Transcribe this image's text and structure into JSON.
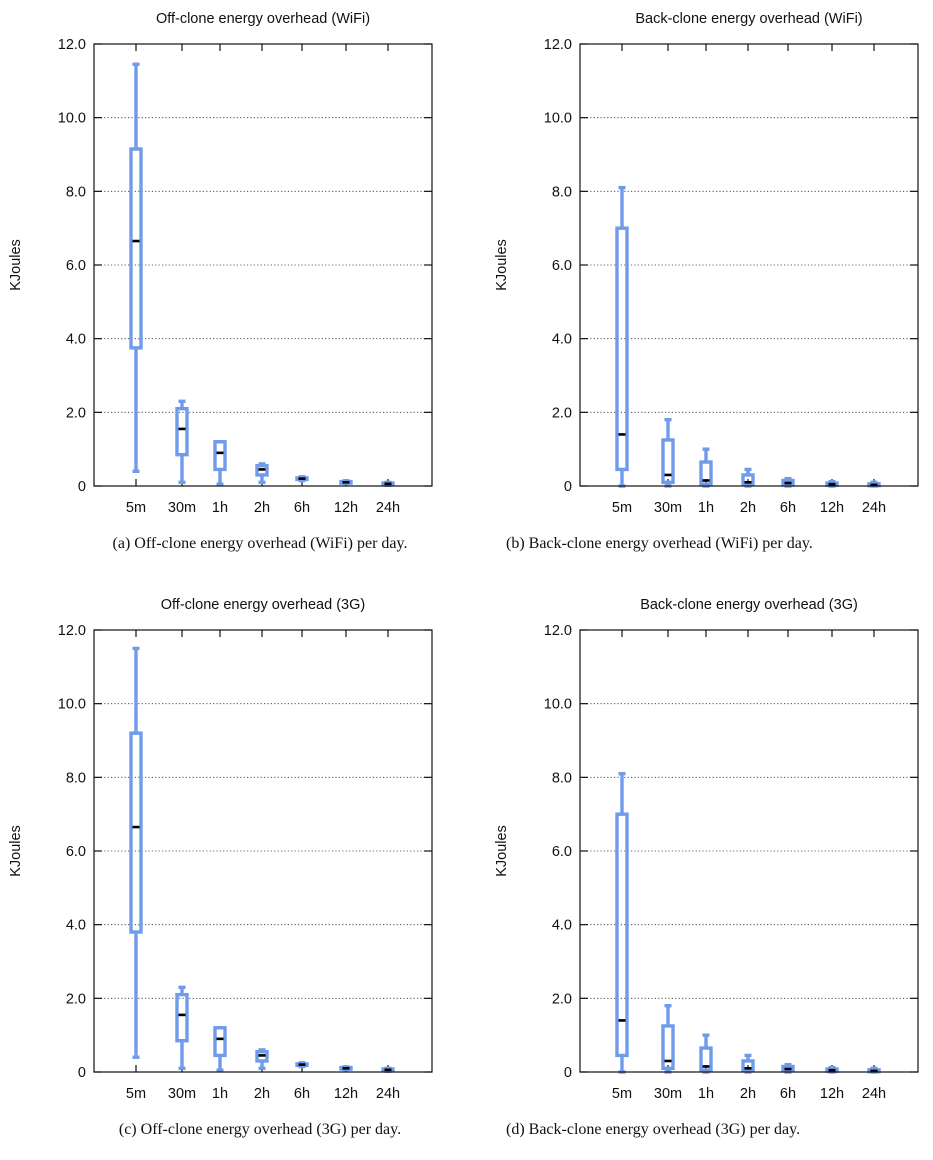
{
  "chart_data": [
    {
      "type": "box",
      "title": "Off-clone energy overhead (WiFi)",
      "caption": "(a) Off-clone energy overhead (WiFi) per day.",
      "ylabel": "KJoules",
      "ylim": [
        0,
        12
      ],
      "yticks": [
        "0",
        "2.0",
        "4.0",
        "6.0",
        "8.0",
        "10.0",
        "12.0"
      ],
      "categories": [
        "5m",
        "30m",
        "1h",
        "2h",
        "6h",
        "12h",
        "24h"
      ],
      "boxes": [
        {
          "min": 0.4,
          "q1": 3.75,
          "median": 6.65,
          "q3": 9.15,
          "max": 11.45
        },
        {
          "min": 0.1,
          "q1": 0.85,
          "median": 1.55,
          "q3": 2.1,
          "max": 2.3
        },
        {
          "min": 0.05,
          "q1": 0.45,
          "median": 0.9,
          "q3": 1.2,
          "max": 1.2
        },
        {
          "min": 0.1,
          "q1": 0.3,
          "median": 0.45,
          "q3": 0.55,
          "max": 0.6
        },
        {
          "min": 0.15,
          "q1": 0.18,
          "median": 0.2,
          "q3": 0.22,
          "max": 0.25
        },
        {
          "min": 0.07,
          "q1": 0.09,
          "median": 0.1,
          "q3": 0.12,
          "max": 0.14
        },
        {
          "min": 0.02,
          "q1": 0.04,
          "median": 0.06,
          "q3": 0.08,
          "max": 0.1
        }
      ],
      "grid": true
    },
    {
      "type": "box",
      "title": "Back-clone energy overhead (WiFi)",
      "caption": "(b) Back-clone energy overhead (WiFi) per day.",
      "ylabel": "KJoules",
      "ylim": [
        0,
        12
      ],
      "yticks": [
        "0",
        "2.0",
        "4.0",
        "6.0",
        "8.0",
        "10.0",
        "12.0"
      ],
      "categories": [
        "5m",
        "30m",
        "1h",
        "2h",
        "6h",
        "12h",
        "24h"
      ],
      "boxes": [
        {
          "min": 0.0,
          "q1": 0.45,
          "median": 1.4,
          "q3": 7.0,
          "max": 8.1
        },
        {
          "min": 0.0,
          "q1": 0.1,
          "median": 0.3,
          "q3": 1.25,
          "max": 1.8
        },
        {
          "min": 0.0,
          "q1": 0.05,
          "median": 0.15,
          "q3": 0.65,
          "max": 1.0
        },
        {
          "min": 0.0,
          "q1": 0.05,
          "median": 0.1,
          "q3": 0.3,
          "max": 0.45
        },
        {
          "min": 0.0,
          "q1": 0.03,
          "median": 0.08,
          "q3": 0.15,
          "max": 0.2
        },
        {
          "min": 0.0,
          "q1": 0.02,
          "median": 0.05,
          "q3": 0.08,
          "max": 0.12
        },
        {
          "min": 0.0,
          "q1": 0.01,
          "median": 0.03,
          "q3": 0.06,
          "max": 0.1
        }
      ],
      "grid": true
    },
    {
      "type": "box",
      "title": "Off-clone energy overhead (3G)",
      "caption": "(c) Off-clone energy overhead (3G) per day.",
      "ylabel": "KJoules",
      "ylim": [
        0,
        12
      ],
      "yticks": [
        "0",
        "2.0",
        "4.0",
        "6.0",
        "8.0",
        "10.0",
        "12.0"
      ],
      "categories": [
        "5m",
        "30m",
        "1h",
        "2h",
        "6h",
        "12h",
        "24h"
      ],
      "boxes": [
        {
          "min": 0.4,
          "q1": 3.8,
          "median": 6.65,
          "q3": 9.2,
          "max": 11.5
        },
        {
          "min": 0.1,
          "q1": 0.85,
          "median": 1.55,
          "q3": 2.1,
          "max": 2.3
        },
        {
          "min": 0.05,
          "q1": 0.45,
          "median": 0.9,
          "q3": 1.2,
          "max": 1.2
        },
        {
          "min": 0.1,
          "q1": 0.3,
          "median": 0.45,
          "q3": 0.55,
          "max": 0.6
        },
        {
          "min": 0.15,
          "q1": 0.18,
          "median": 0.2,
          "q3": 0.22,
          "max": 0.25
        },
        {
          "min": 0.07,
          "q1": 0.09,
          "median": 0.1,
          "q3": 0.12,
          "max": 0.14
        },
        {
          "min": 0.02,
          "q1": 0.04,
          "median": 0.06,
          "q3": 0.08,
          "max": 0.1
        }
      ],
      "grid": true
    },
    {
      "type": "box",
      "title": "Back-clone energy overhead (3G)",
      "caption": "(d) Back-clone energy overhead (3G) per day.",
      "ylabel": "KJoules",
      "ylim": [
        0,
        12
      ],
      "yticks": [
        "0",
        "2.0",
        "4.0",
        "6.0",
        "8.0",
        "10.0",
        "12.0"
      ],
      "categories": [
        "5m",
        "30m",
        "1h",
        "2h",
        "6h",
        "12h",
        "24h"
      ],
      "boxes": [
        {
          "min": 0.0,
          "q1": 0.45,
          "median": 1.4,
          "q3": 7.0,
          "max": 8.1
        },
        {
          "min": 0.0,
          "q1": 0.1,
          "median": 0.3,
          "q3": 1.25,
          "max": 1.8
        },
        {
          "min": 0.0,
          "q1": 0.05,
          "median": 0.15,
          "q3": 0.65,
          "max": 1.0
        },
        {
          "min": 0.0,
          "q1": 0.05,
          "median": 0.1,
          "q3": 0.3,
          "max": 0.45
        },
        {
          "min": 0.0,
          "q1": 0.03,
          "median": 0.08,
          "q3": 0.15,
          "max": 0.2
        },
        {
          "min": 0.0,
          "q1": 0.02,
          "median": 0.05,
          "q3": 0.08,
          "max": 0.12
        },
        {
          "min": 0.0,
          "q1": 0.01,
          "median": 0.03,
          "q3": 0.06,
          "max": 0.1
        }
      ],
      "grid": true
    }
  ]
}
